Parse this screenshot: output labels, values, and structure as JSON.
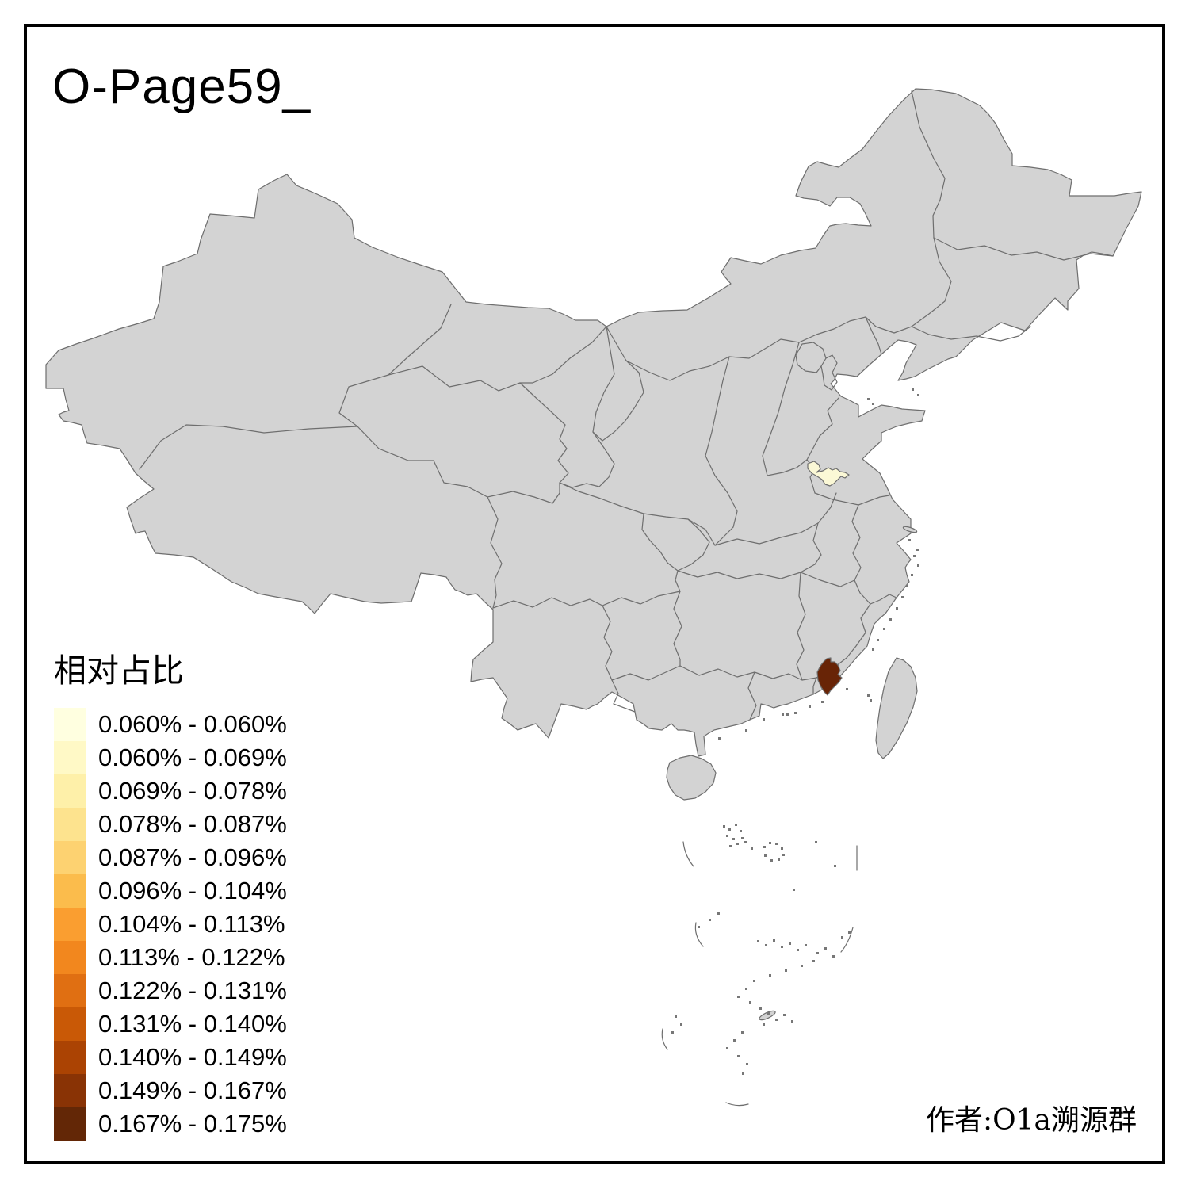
{
  "title": "O-Page59_",
  "legend": {
    "title": "相对占比",
    "items": [
      {
        "label": "0.060% - 0.060%",
        "color": "#FFFFE0"
      },
      {
        "label": "0.060% - 0.069%",
        "color": "#FFF9C6"
      },
      {
        "label": "0.069% - 0.078%",
        "color": "#FEF0A9"
      },
      {
        "label": "0.078% - 0.087%",
        "color": "#FDE38E"
      },
      {
        "label": "0.087% - 0.096%",
        "color": "#FDD271"
      },
      {
        "label": "0.096% - 0.104%",
        "color": "#FBBC4C"
      },
      {
        "label": "0.104% - 0.113%",
        "color": "#FA9E30"
      },
      {
        "label": "0.113% - 0.122%",
        "color": "#F2871E"
      },
      {
        "label": "0.122% - 0.131%",
        "color": "#E06F12"
      },
      {
        "label": "0.131% - 0.140%",
        "color": "#C95906"
      },
      {
        "label": "0.140% - 0.149%",
        "color": "#AB4303"
      },
      {
        "label": "0.149% - 0.167%",
        "color": "#893305"
      },
      {
        "label": "0.167% - 0.175%",
        "color": "#632706"
      }
    ]
  },
  "author_credit": "作者:O1a溯源群",
  "map": {
    "base_fill": "#D3D3D3",
    "boundary_color": "#6E6E6E",
    "background": "#FFFFFF",
    "frame_color": "#000000",
    "highlights": [
      {
        "name": "southwest-shandong-region",
        "bin": "0.060% - 0.060%",
        "color": "#FBF8D6"
      },
      {
        "name": "southern-fujian-region",
        "bin": "0.167% - 0.175%",
        "color": "#682406"
      }
    ]
  },
  "chart_data": {
    "type": "heatmap",
    "subtype": "choropleth_map_of_china",
    "title": "O-Page59_",
    "legend_title": "相对占比",
    "legend_position": "bottom-left",
    "bins": [
      "0.060% - 0.060%",
      "0.060% - 0.069%",
      "0.069% - 0.078%",
      "0.078% - 0.087%",
      "0.087% - 0.096%",
      "0.096% - 0.104%",
      "0.104% - 0.113%",
      "0.113% - 0.122%",
      "0.122% - 0.131%",
      "0.131% - 0.140%",
      "0.140% - 0.149%",
      "0.149% - 0.167%",
      "0.167% - 0.175%"
    ],
    "bin_colors": [
      "#FFFFE0",
      "#FFF9C6",
      "#FEF0A9",
      "#FDE38E",
      "#FDD271",
      "#FBBC4C",
      "#FA9E30",
      "#F2871E",
      "#E06F12",
      "#C95906",
      "#AB4303",
      "#893305",
      "#632706"
    ],
    "colored_regions": [
      {
        "map_location": "southwest Shandong",
        "bin": "0.060% - 0.060%"
      },
      {
        "map_location": "southern Fujian coast",
        "bin": "0.167% - 0.175%"
      }
    ],
    "uncolored_region_fill": "#D3D3D3",
    "annotations": [
      "作者:O1a溯源群"
    ]
  }
}
